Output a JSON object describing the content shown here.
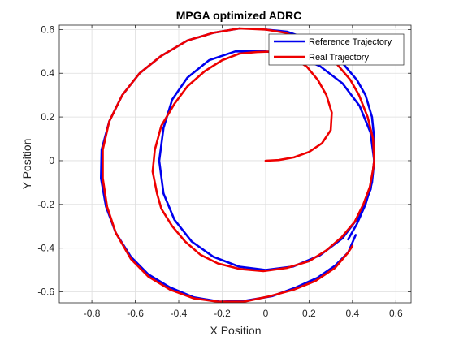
{
  "chart_data": {
    "type": "line",
    "title": "MPGA optimized ADRC",
    "xlabel": "X Position",
    "ylabel": "Y Position",
    "xlim": [
      -0.95,
      0.67
    ],
    "ylim": [
      -0.65,
      0.62
    ],
    "xticks": [
      -0.8,
      -0.6,
      -0.4,
      -0.2,
      0,
      0.2,
      0.4,
      0.6
    ],
    "yticks": [
      -0.6,
      -0.4,
      -0.2,
      0,
      0.2,
      0.4,
      0.6
    ],
    "xtick_labels": [
      "-0.8",
      "-0.6",
      "-0.4",
      "-0.2",
      "0",
      "0.2",
      "0.4",
      "0.6"
    ],
    "ytick_labels": [
      "-0.6",
      "-0.4",
      "-0.2",
      "0",
      "0.2",
      "0.4",
      "0.6"
    ],
    "grid": true,
    "legend_position": "top-right",
    "series": [
      {
        "name": "Reference Trajectory",
        "color": "#0000ee",
        "points": [
          [
            0.0,
            0.5
          ],
          [
            0.125,
            0.484
          ],
          [
            0.25,
            0.433
          ],
          [
            0.354,
            0.354
          ],
          [
            0.433,
            0.25
          ],
          [
            0.483,
            0.129
          ],
          [
            0.5,
            0.0
          ],
          [
            0.484,
            -0.13
          ],
          [
            0.434,
            -0.25
          ],
          [
            0.354,
            -0.355
          ],
          [
            0.25,
            -0.433
          ],
          [
            0.127,
            -0.484
          ],
          [
            0.0,
            -0.5
          ],
          [
            -0.12,
            -0.485
          ],
          [
            -0.24,
            -0.44
          ],
          [
            -0.34,
            -0.37
          ],
          [
            -0.42,
            -0.27
          ],
          [
            -0.47,
            -0.15
          ],
          [
            -0.49,
            0.0
          ],
          [
            -0.47,
            0.15
          ],
          [
            -0.43,
            0.28
          ],
          [
            -0.36,
            0.38
          ],
          [
            -0.26,
            0.46
          ],
          [
            -0.14,
            0.5
          ],
          [
            0.0,
            0.5
          ]
        ]
      },
      {
        "name": "Real Trajectory",
        "color": "#ee0000",
        "points": [
          [
            0.0,
            0.0
          ],
          [
            0.06,
            0.003
          ],
          [
            0.13,
            0.015
          ],
          [
            0.2,
            0.04
          ],
          [
            0.26,
            0.08
          ],
          [
            0.3,
            0.14
          ],
          [
            0.305,
            0.22
          ],
          [
            0.28,
            0.3
          ],
          [
            0.24,
            0.37
          ],
          [
            0.19,
            0.43
          ],
          [
            0.12,
            0.475
          ],
          [
            0.04,
            0.5
          ],
          [
            -0.04,
            0.497
          ],
          [
            -0.12,
            0.49
          ],
          [
            -0.2,
            0.46
          ],
          [
            -0.28,
            0.41
          ],
          [
            -0.36,
            0.34
          ],
          [
            -0.42,
            0.26
          ],
          [
            -0.48,
            0.16
          ],
          [
            -0.51,
            0.05
          ],
          [
            -0.52,
            -0.05
          ],
          [
            -0.5,
            -0.15
          ],
          [
            -0.48,
            -0.22
          ],
          [
            -0.43,
            -0.3
          ],
          [
            -0.37,
            -0.37
          ],
          [
            -0.3,
            -0.43
          ],
          [
            -0.22,
            -0.47
          ],
          [
            -0.12,
            -0.495
          ],
          [
            -0.01,
            -0.505
          ],
          [
            0.1,
            -0.49
          ],
          [
            0.2,
            -0.46
          ],
          [
            0.28,
            -0.41
          ],
          [
            0.35,
            -0.35
          ],
          [
            0.41,
            -0.28
          ],
          [
            0.45,
            -0.2
          ],
          [
            0.48,
            -0.12
          ],
          [
            0.495,
            -0.04
          ],
          [
            0.5,
            0.0
          ],
          [
            0.495,
            0.1
          ],
          [
            0.47,
            0.2
          ],
          [
            0.43,
            0.3
          ],
          [
            0.39,
            0.37
          ],
          [
            0.33,
            0.44
          ],
          [
            0.26,
            0.5
          ],
          [
            0.18,
            0.55
          ],
          [
            0.09,
            0.585
          ],
          [
            0.0,
            0.6
          ],
          [
            -0.12,
            0.605
          ],
          [
            -0.24,
            0.585
          ],
          [
            -0.36,
            0.55
          ],
          [
            -0.48,
            0.48
          ],
          [
            -0.58,
            0.4
          ],
          [
            -0.66,
            0.3
          ],
          [
            -0.72,
            0.18
          ],
          [
            -0.75,
            0.05
          ],
          [
            -0.75,
            -0.08
          ],
          [
            -0.73,
            -0.21
          ],
          [
            -0.69,
            -0.33
          ],
          [
            -0.62,
            -0.45
          ],
          [
            -0.54,
            -0.53
          ],
          [
            -0.44,
            -0.59
          ],
          [
            -0.33,
            -0.63
          ],
          [
            -0.22,
            -0.645
          ],
          [
            -0.1,
            -0.645
          ],
          [
            0.02,
            -0.62
          ],
          [
            0.13,
            -0.59
          ],
          [
            0.23,
            -0.55
          ],
          [
            0.32,
            -0.49
          ],
          [
            0.38,
            -0.42
          ],
          [
            0.4,
            -0.39
          ]
        ]
      }
    ],
    "reference_tail": [
      [
        -0.12,
        0.605
      ],
      [
        -0.24,
        0.585
      ],
      [
        -0.36,
        0.55
      ],
      [
        -0.48,
        0.48
      ],
      [
        -0.58,
        0.4
      ],
      [
        -0.66,
        0.3
      ],
      [
        -0.72,
        0.18
      ],
      [
        -0.755,
        0.05
      ],
      [
        -0.758,
        -0.08
      ],
      [
        -0.735,
        -0.21
      ],
      [
        -0.69,
        -0.33
      ],
      [
        -0.62,
        -0.44
      ],
      [
        -0.54,
        -0.52
      ],
      [
        -0.44,
        -0.58
      ],
      [
        -0.33,
        -0.625
      ],
      [
        -0.21,
        -0.645
      ],
      [
        -0.09,
        -0.64
      ],
      [
        0.03,
        -0.62
      ],
      [
        0.14,
        -0.58
      ],
      [
        0.24,
        -0.535
      ],
      [
        0.32,
        -0.48
      ],
      [
        0.38,
        -0.42
      ],
      [
        0.415,
        -0.34
      ]
    ],
    "reference_outer": [
      [
        0.0,
        0.6
      ],
      [
        0.1,
        0.59
      ],
      [
        0.2,
        0.555
      ],
      [
        0.29,
        0.5
      ],
      [
        0.36,
        0.44
      ],
      [
        0.42,
        0.37
      ],
      [
        0.46,
        0.3
      ],
      [
        0.49,
        0.2
      ],
      [
        0.5,
        0.1
      ],
      [
        0.5,
        0.0
      ],
      [
        0.49,
        -0.1
      ],
      [
        0.46,
        -0.2
      ],
      [
        0.42,
        -0.29
      ],
      [
        0.38,
        -0.36
      ]
    ]
  }
}
